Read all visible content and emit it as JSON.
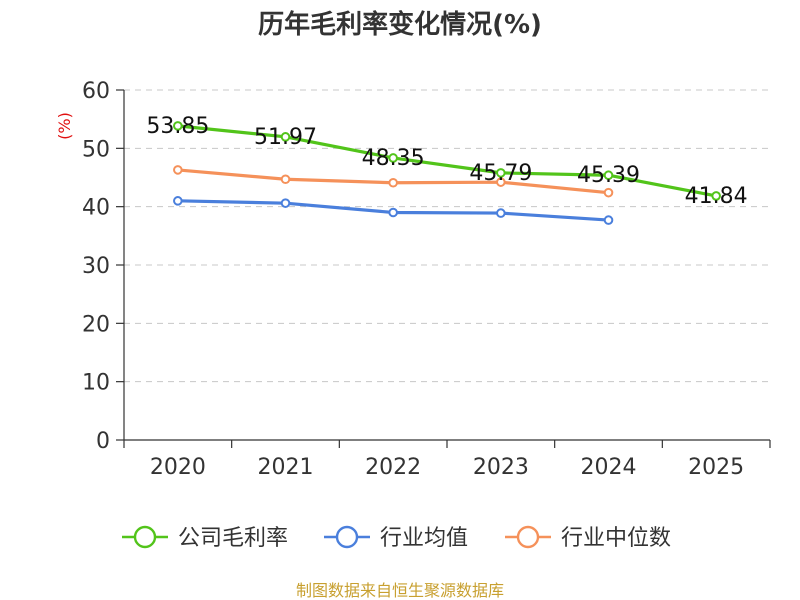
{
  "chart_data": {
    "type": "line",
    "title": "历年毛利率变化情况(%)",
    "ylabel": "(%)",
    "xlabel": "",
    "categories": [
      "2020",
      "2021",
      "2022",
      "2023",
      "2024",
      "2025"
    ],
    "ylim": [
      0,
      60
    ],
    "yticks": [
      0,
      10,
      20,
      30,
      40,
      50,
      60
    ],
    "grid": true,
    "legend_position": "bottom",
    "series": [
      {
        "name": "公司毛利率",
        "color": "#52c41a",
        "values": [
          53.85,
          51.97,
          48.35,
          45.79,
          45.39,
          41.84
        ],
        "labels": [
          "53.85",
          "51.97",
          "48.35",
          "45.79",
          "45.39",
          "41.84"
        ]
      },
      {
        "name": "行业均值",
        "color": "#4a7fdc",
        "values": [
          41.0,
          40.6,
          39.0,
          38.9,
          37.7,
          null
        ]
      },
      {
        "name": "行业中位数",
        "color": "#f5915a",
        "values": [
          46.3,
          44.7,
          44.1,
          44.2,
          42.4,
          null
        ]
      }
    ]
  },
  "footer": {
    "source": "制图数据来自恒生聚源数据库"
  }
}
